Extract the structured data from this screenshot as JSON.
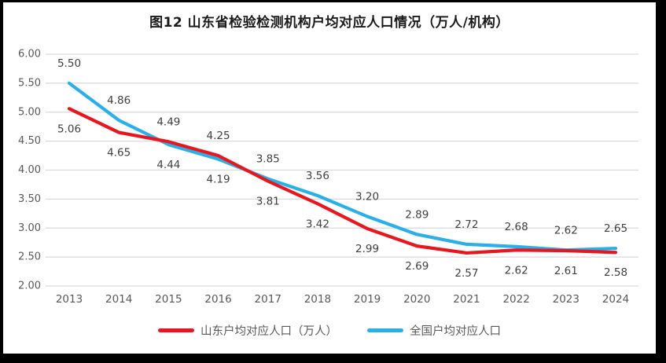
{
  "chart_data": {
    "type": "line",
    "title": "图12 山东省检验检测机构户均对应人口情况（万人/机构）",
    "categories": [
      "2013",
      "2014",
      "2015",
      "2016",
      "2017",
      "2018",
      "2019",
      "2020",
      "2021",
      "2022",
      "2023",
      "2024"
    ],
    "series": [
      {
        "name": "山东户均对应人口（万人）",
        "color": "#e8161e",
        "values": [
          5.06,
          4.65,
          4.49,
          4.25,
          3.81,
          3.42,
          2.99,
          2.69,
          2.57,
          2.62,
          2.61,
          2.58
        ]
      },
      {
        "name": "全国户均对应人口",
        "color": "#2ab0e8",
        "values": [
          5.5,
          4.86,
          4.44,
          4.19,
          3.85,
          3.56,
          3.2,
          2.89,
          2.72,
          2.68,
          2.62,
          2.65
        ]
      }
    ],
    "ylim": [
      2.0,
      6.0
    ],
    "ytick_labels": [
      "6.00",
      "5.50",
      "5.00",
      "4.50",
      "4.00",
      "3.50",
      "3.00",
      "2.50",
      "2.00"
    ],
    "grid": true,
    "data_labels": true,
    "legend_position": "bottom"
  },
  "styles": {
    "grid_color": "#d9d9d9",
    "tick_label_color": "#595959",
    "data_label_color": "#404040",
    "title_color": "#1a1a1a",
    "background": "#ffffff",
    "frame_border_color": "#000000"
  }
}
